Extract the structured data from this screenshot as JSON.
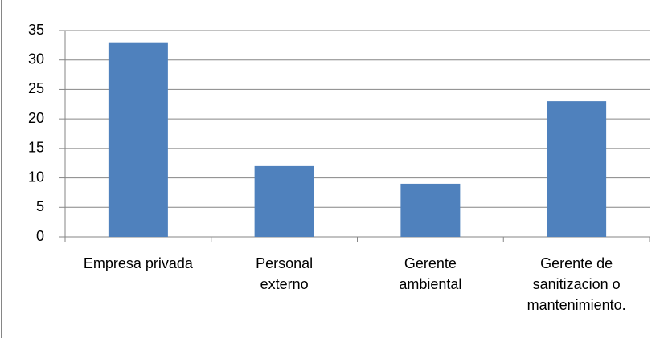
{
  "chart_data": {
    "type": "bar",
    "categories": [
      "Empresa privada",
      "Personal\nexterno",
      "Gerente\nambiental",
      "Gerente de\nsanitizacion o\nmantenimiento."
    ],
    "values": [
      33,
      12,
      9,
      23
    ],
    "color": "#4f81bd",
    "ylim": [
      0,
      35
    ],
    "yticks": [
      0,
      5,
      10,
      15,
      20,
      25,
      30,
      35
    ],
    "grid": true
  }
}
